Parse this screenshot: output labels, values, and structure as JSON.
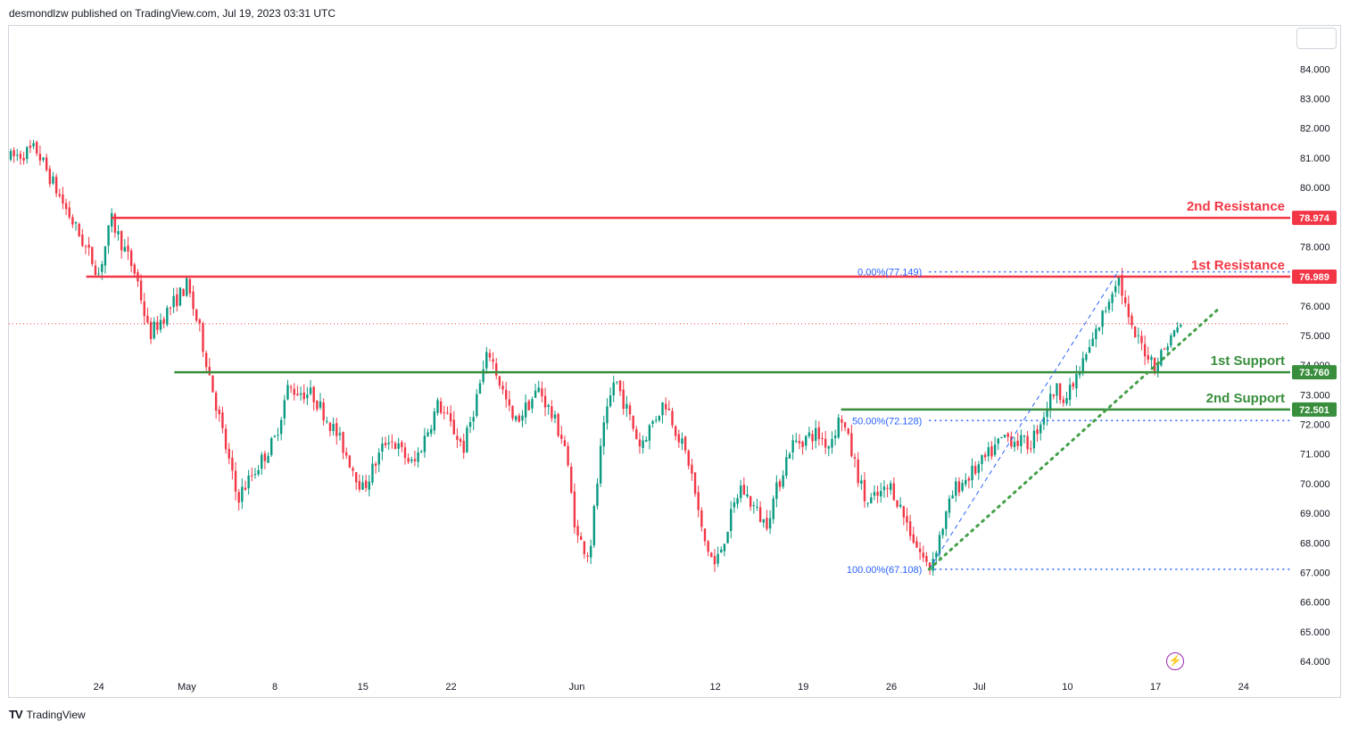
{
  "header": {
    "text": "desmondlzw published on TradingView.com, Jul 19, 2023 03:31 UTC"
  },
  "footer": {
    "logo": "TV",
    "brand": "TradingView"
  },
  "icons": {
    "bolt": "lightning-icon",
    "bolt_glyph": "⚡"
  },
  "colors": {
    "resistance": "#f23645",
    "support": "#388e3c",
    "fib": "#2962ff",
    "trendline": "#43a047",
    "up": "#089981",
    "down": "#f23645",
    "current_price_line": "#f23645"
  },
  "chart_data": {
    "type": "candlestick",
    "y_axis": {
      "ylim": [
        63.7,
        85.2
      ],
      "tick_labels": [
        "84.000",
        "83.000",
        "82.000",
        "81.000",
        "80.000",
        "79.000",
        "78.000",
        "77.000",
        "76.000",
        "75.000",
        "74.000",
        "73.000",
        "72.000",
        "71.000",
        "70.000",
        "69.000",
        "68.000",
        "67.000",
        "66.000",
        "65.000",
        "64.000"
      ]
    },
    "x_axis": {
      "tick_labels": [
        "24",
        "May",
        "8",
        "15",
        "22",
        "Jun",
        "12",
        "19",
        "26",
        "Jul",
        "10",
        "17",
        "24"
      ]
    },
    "price_path": [
      [
        "Apr 17",
        81.0
      ],
      [
        "Apr 19",
        81.3
      ],
      [
        "Apr 21",
        79.6
      ],
      [
        "Apr 24",
        77.1
      ],
      [
        "Apr 25",
        78.9
      ],
      [
        "Apr 27",
        77.0
      ],
      [
        "Apr 28",
        75.0
      ],
      [
        "May 1",
        76.7
      ],
      [
        "May 2",
        75.2
      ],
      [
        "May 4",
        71.4
      ],
      [
        "May 5",
        69.5
      ],
      [
        "May 8",
        71.5
      ],
      [
        "May 9",
        73.2
      ],
      [
        "May 11",
        73.0
      ],
      [
        "May 13",
        71.6
      ],
      [
        "May 15",
        69.8
      ],
      [
        "May 17",
        71.6
      ],
      [
        "May 19",
        70.6
      ],
      [
        "May 21",
        72.7
      ],
      [
        "May 23",
        71.2
      ],
      [
        "May 25",
        74.5
      ],
      [
        "May 27",
        72.0
      ],
      [
        "May 29",
        73.2
      ],
      [
        "May 31",
        71.4
      ],
      [
        "Jun 1",
        68.2
      ],
      [
        "Jun 2",
        67.6
      ],
      [
        "Jun 3",
        71.5
      ],
      [
        "Jun 4",
        73.6
      ],
      [
        "Jun 6",
        71.3
      ],
      [
        "Jun 8",
        72.8
      ],
      [
        "Jun 10",
        70.6
      ],
      [
        "Jun 11",
        68.2
      ],
      [
        "Jun 12",
        67.2
      ],
      [
        "Jun 14",
        69.9
      ],
      [
        "Jun 16",
        68.6
      ],
      [
        "Jun 18",
        71.3
      ],
      [
        "Jun 20",
        71.7
      ],
      [
        "Jun 21",
        71.3
      ],
      [
        "Jun 22",
        72.3
      ],
      [
        "Jun 24",
        69.3
      ],
      [
        "Jun 26",
        69.9
      ],
      [
        "Jun 28",
        67.9
      ],
      [
        "Jun 29",
        67.1
      ],
      [
        "Jul 1",
        69.8
      ],
      [
        "Jul 3",
        70.6
      ],
      [
        "Jul 5",
        71.6
      ],
      [
        "Jul 7",
        71.3
      ],
      [
        "Jul 9",
        73.2
      ],
      [
        "Jul 10",
        72.9
      ],
      [
        "Jul 12",
        74.8
      ],
      [
        "Jul 13",
        75.9
      ],
      [
        "Jul 14",
        77.1
      ],
      [
        "Jul 15",
        75.2
      ],
      [
        "Jul 17",
        74.0
      ],
      [
        "Jul 18",
        74.8
      ],
      [
        "Jul 19",
        75.4
      ]
    ],
    "candle_count": 360,
    "seed": 7,
    "horizontal_levels": [
      {
        "label": "2nd Resistance",
        "price": 78.974,
        "price_label": "78.974",
        "kind": "resistance",
        "x_start": "Apr 25"
      },
      {
        "label": "1st Resistance",
        "price": 76.989,
        "price_label": "76.989",
        "kind": "resistance",
        "x_start": "Apr 23"
      },
      {
        "label": "1st Support",
        "price": 73.76,
        "price_label": "73.760",
        "kind": "support",
        "x_start": "Apr 30"
      },
      {
        "label": "2nd Support",
        "price": 72.501,
        "price_label": "72.501",
        "kind": "support",
        "x_start": "Jun 22"
      }
    ],
    "fibonacci": {
      "from": {
        "x": "Jun 29",
        "price": 67.108
      },
      "to": {
        "x": "Jul 14",
        "price": 77.149
      },
      "levels": [
        {
          "label": "0.00%(77.149)",
          "price": 77.149
        },
        {
          "label": "50.00%(72.128)",
          "price": 72.128
        },
        {
          "label": "100.00%(67.108)",
          "price": 67.108
        }
      ]
    },
    "trendline": {
      "from": {
        "x": "Jun 29",
        "price": 67.108
      },
      "to": {
        "x": "Jul 22",
        "price": 75.9
      }
    },
    "current_price": 75.4,
    "date_index": {
      "Apr 17": 0,
      "Apr 24": 7,
      "May 1": 14,
      "May 8": 21,
      "May 15": 28,
      "May 22": 35,
      "Jun 1": 45,
      "Jun 12": 56,
      "Jun 19": 63,
      "Jun 26": 70,
      "Jul 3": 77,
      "Jul 10": 84,
      "Jul 17": 91,
      "Jul 24": 98
    }
  }
}
